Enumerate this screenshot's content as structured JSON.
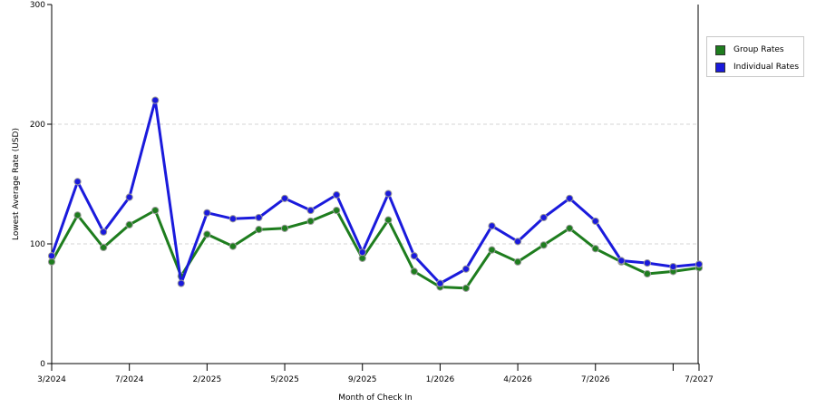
{
  "chart_data": {
    "type": "line",
    "title": "",
    "xlabel": "Month of Check In",
    "ylabel": "Lowest Average Rate (USD)",
    "ylim": [
      0,
      300
    ],
    "yticks": [
      0,
      100,
      200,
      300
    ],
    "grid": true,
    "legend_position": "right",
    "xtick_labels": [
      "3/2024",
      "7/2024",
      "2/2025",
      "5/2025",
      "9/2025",
      "1/2026",
      "4/2026",
      "7/2026",
      "7/2027"
    ],
    "series": [
      {
        "name": "Group Rates",
        "color": "#1e7d1e",
        "values": [
          85,
          124,
          97,
          116,
          128,
          73,
          108,
          98,
          112,
          113,
          119,
          128,
          88,
          120,
          77,
          64,
          63,
          95,
          85,
          99,
          113,
          96,
          85,
          75,
          77,
          80
        ]
      },
      {
        "name": "Individual Rates",
        "color": "#1a1adc",
        "values": [
          90,
          152,
          110,
          139,
          220,
          67,
          126,
          121,
          122,
          138,
          128,
          141,
          93,
          142,
          90,
          67,
          79,
          115,
          102,
          122,
          138,
          119,
          86,
          84,
          81,
          83
        ]
      }
    ]
  }
}
